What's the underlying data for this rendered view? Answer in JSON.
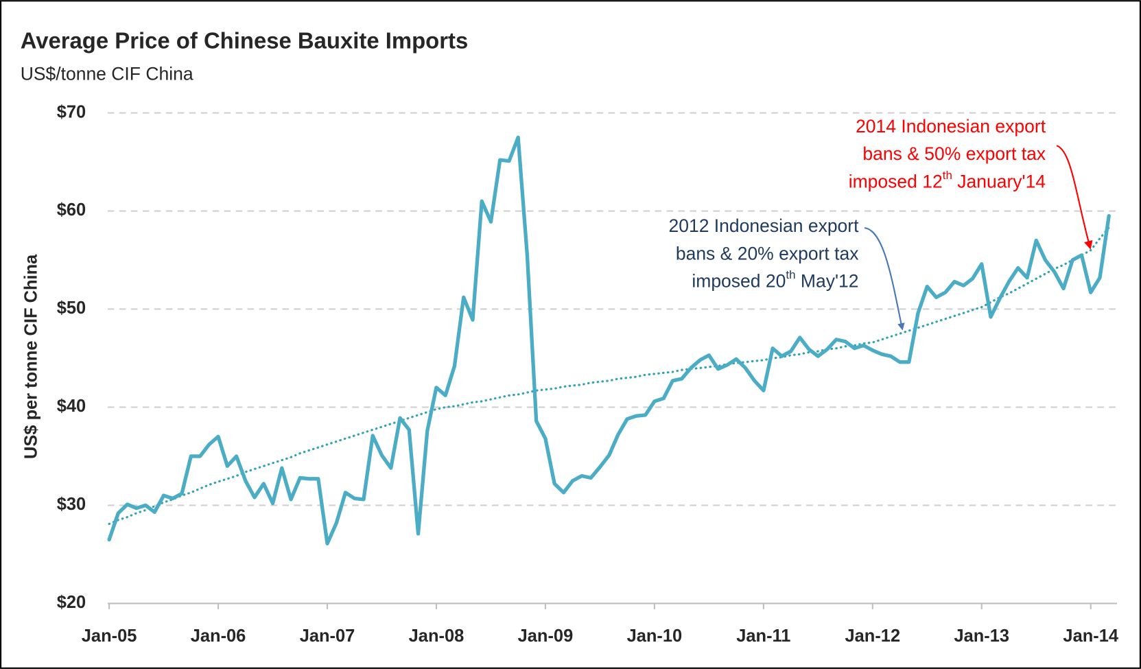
{
  "chart_data": {
    "type": "line",
    "title": "Average Price of Chinese Bauxite Imports",
    "subtitle": "US$/tonne CIF China",
    "y_label": "US$ per tonne CIF China",
    "ylim": [
      20,
      70
    ],
    "yticks": [
      {
        "value": 20,
        "label": "$20"
      },
      {
        "value": 30,
        "label": "$30"
      },
      {
        "value": 40,
        "label": "$40"
      },
      {
        "value": 50,
        "label": "$50"
      },
      {
        "value": 60,
        "label": "$60"
      },
      {
        "value": 70,
        "label": "$70"
      }
    ],
    "grid": true,
    "categories": [
      "Jan-05",
      null,
      null,
      null,
      null,
      null,
      null,
      null,
      null,
      null,
      null,
      null,
      "Jan-06",
      null,
      null,
      null,
      null,
      null,
      null,
      null,
      null,
      null,
      null,
      null,
      "Jan-07",
      null,
      null,
      null,
      null,
      null,
      null,
      null,
      null,
      null,
      null,
      null,
      "Jan-08",
      null,
      null,
      null,
      null,
      null,
      null,
      null,
      null,
      null,
      null,
      null,
      "Jan-09",
      null,
      null,
      null,
      null,
      null,
      null,
      null,
      null,
      null,
      null,
      null,
      "Jan-10",
      null,
      null,
      null,
      null,
      null,
      null,
      null,
      null,
      null,
      null,
      null,
      "Jan-11",
      null,
      null,
      null,
      null,
      null,
      null,
      null,
      null,
      null,
      null,
      null,
      "Jan-12",
      null,
      null,
      null,
      null,
      null,
      null,
      null,
      null,
      null,
      null,
      null,
      "Jan-13",
      null,
      null,
      null,
      null,
      null,
      null,
      null,
      null,
      null,
      null,
      null,
      "Jan-14",
      null,
      null
    ],
    "series": [
      {
        "color": "#4bacc6",
        "style": "solid",
        "values": [
          26.5,
          29.2,
          30.1,
          29.7,
          30.0,
          29.3,
          31.0,
          30.7,
          31.2,
          35.0,
          35.0,
          36.2,
          37.0,
          34.0,
          35.0,
          32.5,
          30.8,
          32.2,
          30.2,
          33.8,
          30.6,
          32.8,
          32.7,
          32.7,
          26.1,
          28.2,
          31.3,
          30.7,
          30.6,
          37.1,
          35.1,
          33.8,
          38.9,
          37.7,
          27.1,
          37.6,
          42.0,
          41.2,
          44.2,
          51.2,
          48.9,
          61.0,
          58.9,
          65.2,
          65.1,
          67.5,
          55.5,
          38.6,
          36.8,
          32.2,
          31.3,
          32.5,
          33.0,
          32.8,
          33.9,
          35.1,
          37.2,
          38.8,
          39.1,
          39.2,
          40.6,
          40.9,
          42.7,
          42.9,
          44.0,
          44.8,
          45.3,
          43.9,
          44.3,
          44.9,
          44.0,
          42.7,
          41.7,
          46.0,
          45.2,
          45.7,
          47.1,
          45.9,
          45.2,
          45.9,
          46.9,
          46.7,
          46.0,
          46.3,
          45.8,
          45.4,
          45.2,
          44.6,
          44.6,
          49.6,
          52.3,
          51.2,
          51.7,
          52.8,
          52.4,
          53.1,
          54.6,
          49.2,
          51.1,
          52.8,
          54.2,
          53.2,
          57.0,
          55.0,
          53.8,
          52.1,
          55.0,
          55.5,
          51.7,
          53.2,
          59.5
        ]
      },
      {
        "color": "#31a3b3",
        "style": "dotted",
        "values": [
          28.1,
          28.5,
          28.8,
          29.2,
          29.5,
          29.9,
          30.3,
          30.6,
          31.0,
          31.3,
          31.7,
          32.1,
          32.4,
          32.7,
          33.0,
          33.4,
          33.7,
          34.0,
          34.3,
          34.6,
          34.9,
          35.3,
          35.6,
          35.9,
          36.2,
          36.5,
          36.8,
          37.1,
          37.4,
          37.7,
          38.0,
          38.3,
          38.6,
          38.9,
          39.2,
          39.5,
          39.8,
          40.0,
          40.1,
          40.3,
          40.5,
          40.6,
          40.8,
          41.0,
          41.2,
          41.3,
          41.5,
          41.7,
          41.8,
          41.9,
          42.1,
          42.2,
          42.3,
          42.5,
          42.6,
          42.7,
          42.9,
          43.0,
          43.1,
          43.3,
          43.4,
          43.5,
          43.6,
          43.8,
          43.9,
          44.0,
          44.1,
          44.2,
          44.4,
          44.5,
          44.6,
          44.7,
          44.8,
          45.0,
          45.1,
          45.3,
          45.4,
          45.6,
          45.7,
          45.9,
          46.0,
          46.2,
          46.3,
          46.5,
          46.6,
          46.9,
          47.2,
          47.5,
          47.8,
          48.1,
          48.4,
          48.7,
          49.0,
          49.3,
          49.6,
          49.9,
          50.2,
          50.7,
          51.2,
          51.6,
          52.1,
          52.6,
          53.1,
          53.6,
          54.1,
          54.5,
          55.0,
          55.5,
          56.0,
          57.2,
          58.3
        ]
      }
    ],
    "annotations": [
      {
        "color": "#ff0000",
        "lines": [
          [
            "2014 Indonesian export"
          ],
          [
            "bans & 50% export tax"
          ],
          [
            "imposed 12",
            "th",
            " January'14"
          ]
        ]
      },
      {
        "color": "#1f3a5f",
        "lines": [
          [
            "2012 Indonesian export"
          ],
          [
            "bans & 20% export tax"
          ],
          [
            "imposed 20",
            "th",
            " May'12"
          ]
        ]
      }
    ]
  }
}
